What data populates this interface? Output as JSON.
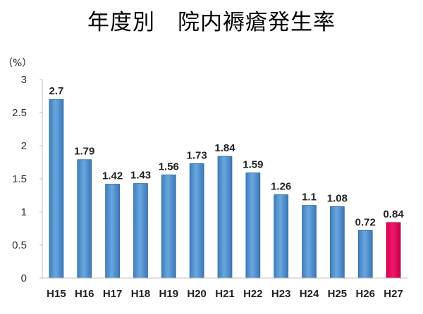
{
  "chart_title": "年度別　院内褥瘡発生率",
  "chart_data": {
    "type": "bar",
    "title": "年度別　院内褥瘡発生率",
    "ylabel": "（%）",
    "xlabel": "",
    "categories": [
      "H15",
      "H16",
      "H17",
      "H18",
      "H19",
      "H20",
      "H21",
      "H22",
      "H23",
      "H24",
      "H25",
      "H26",
      "H27"
    ],
    "values": [
      2.7,
      1.79,
      1.42,
      1.43,
      1.56,
      1.73,
      1.84,
      1.59,
      1.26,
      1.1,
      1.08,
      0.72,
      0.84
    ],
    "data_labels": [
      "2.7",
      "1.79",
      "1.42",
      "1.43",
      "1.56",
      "1.73",
      "1.84",
      "1.59",
      "1.26",
      "1.1",
      "1.08",
      "0.72",
      "0.84"
    ],
    "y_ticks": [
      "0",
      "0.5",
      "1",
      "1.5",
      "2",
      "2.5",
      "3"
    ],
    "y_tick_values": [
      0,
      0.5,
      1,
      1.5,
      2,
      2.5,
      3
    ],
    "ylim": [
      0,
      3
    ],
    "grid": false,
    "legend": "none",
    "bar_color": "#5b9bd5",
    "highlight_color": "#e6005c",
    "highlight_categories": [
      "H27"
    ]
  }
}
